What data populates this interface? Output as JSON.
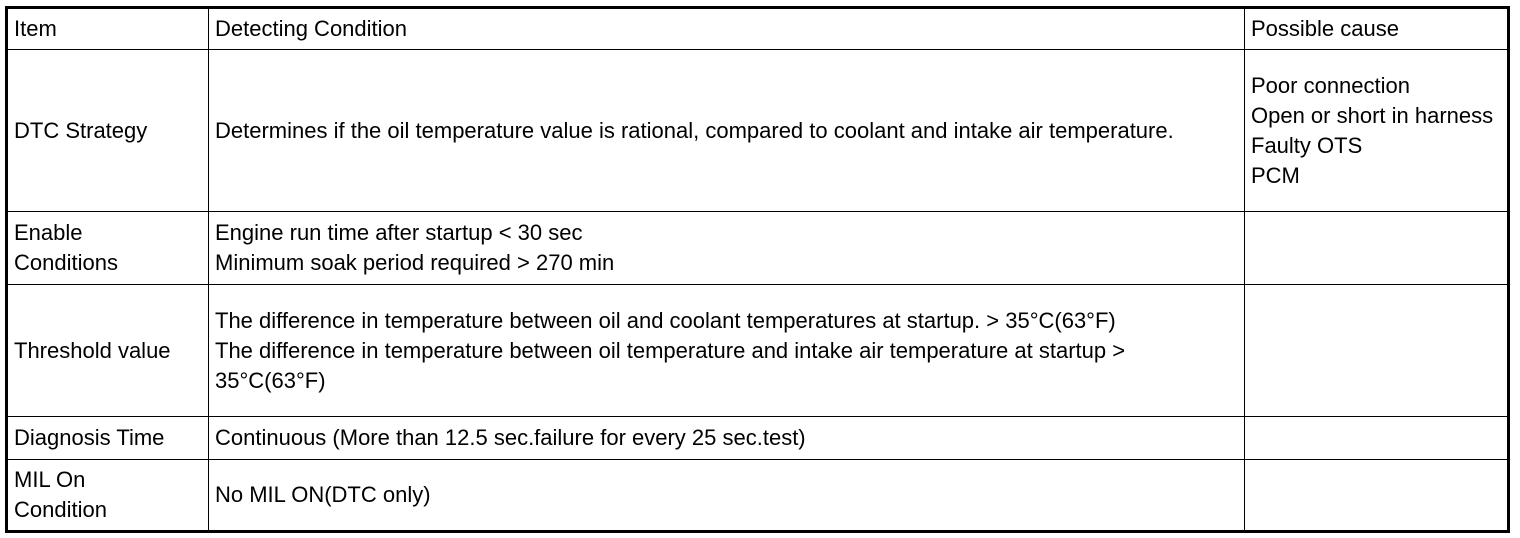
{
  "table": {
    "header": [
      "Item",
      "Detecting Condition",
      "Possible cause"
    ],
    "rows": [
      [
        [
          "DTC Strategy"
        ],
        [
          "Determines if the oil temperature value is rational, compared to coolant and intake air temperature."
        ],
        [
          "Poor connection",
          "Open or short in harness",
          "Faulty OTS",
          "PCM"
        ]
      ],
      [
        [
          "Enable\nConditions"
        ],
        [
          "Engine run time after startup < 30 sec",
          "Minimum soak period required > 270 min"
        ],
        []
      ],
      [
        [
          "Threshold value"
        ],
        [
          "The difference in temperature between oil and coolant temperatures at startup. > 35°C(63°F)",
          "The difference in temperature between oil temperature and intake air temperature at startup > 35°C(63°F)"
        ],
        []
      ],
      [
        [
          "Diagnosis Time"
        ],
        [
          "Continuous (More than 12.5 sec.failure for every 25 sec.test)"
        ],
        []
      ],
      [
        [
          "MIL On\nCondition"
        ],
        [
          "No MIL ON(DTC only)"
        ],
        []
      ]
    ]
  }
}
